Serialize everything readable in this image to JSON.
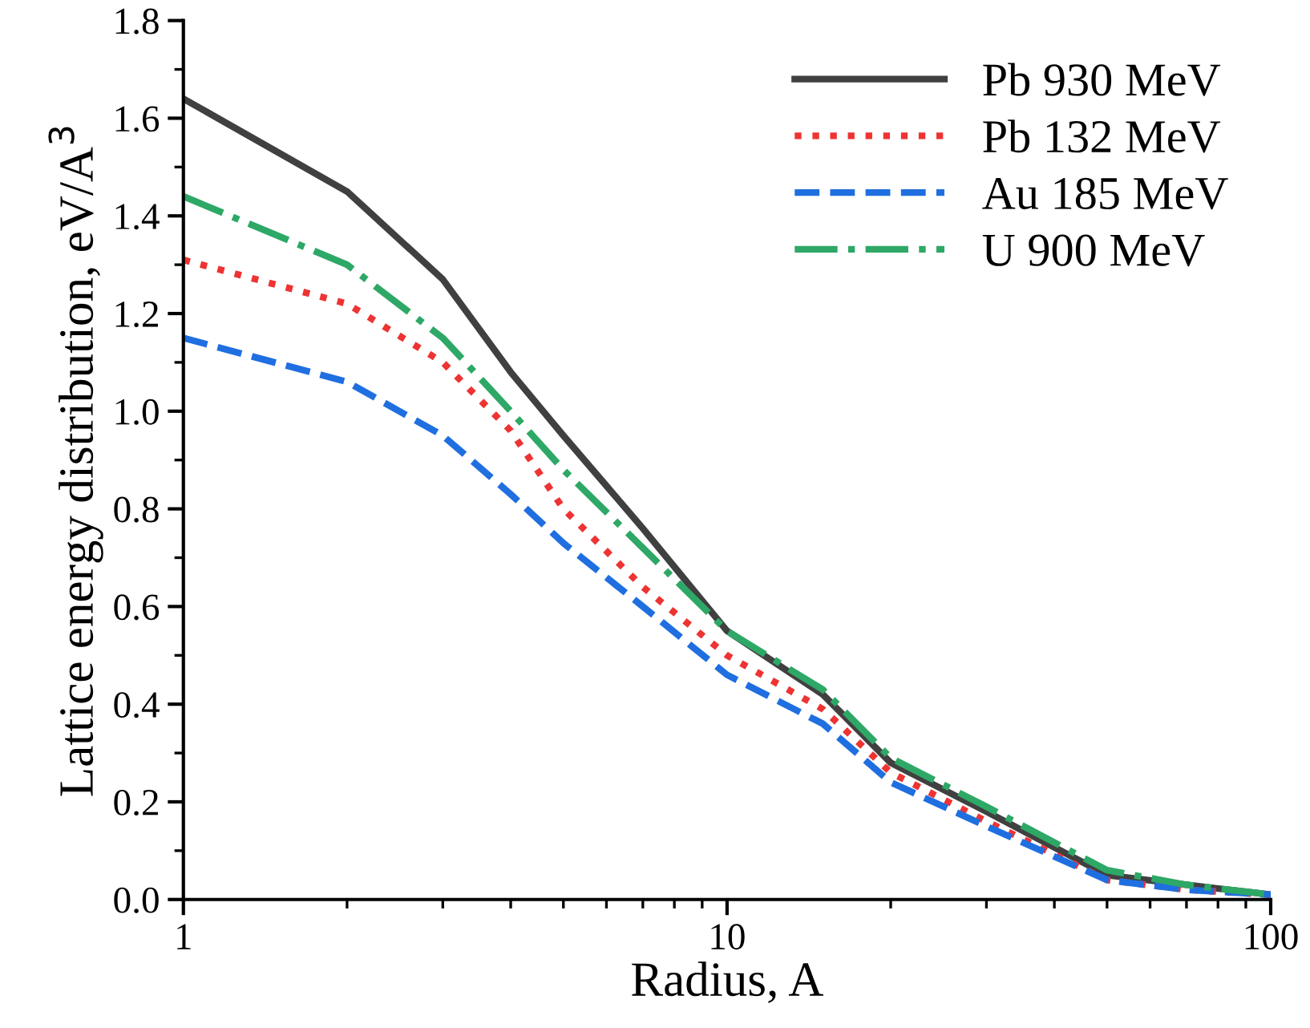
{
  "chart_data": {
    "type": "line",
    "xlabel": "Radius, A",
    "ylabel": "Lattice energy distribution, eV/A$^{3}$",
    "x": [
      1,
      2,
      3,
      4,
      5,
      7,
      10,
      15,
      20,
      30,
      50,
      70,
      100
    ],
    "series": [
      {
        "name": "Pb 930 MeV",
        "color": "#404040",
        "line_style": "solid",
        "values": [
          1.64,
          1.45,
          1.27,
          1.08,
          0.95,
          0.76,
          0.55,
          0.42,
          0.28,
          0.18,
          0.05,
          0.03,
          0.01
        ]
      },
      {
        "name": "Pb 132 MeV",
        "color": "#ee3333",
        "line_style": "dotted",
        "values": [
          1.31,
          1.22,
          1.1,
          0.96,
          0.8,
          0.64,
          0.5,
          0.39,
          0.26,
          0.16,
          0.04,
          0.02,
          0.01
        ]
      },
      {
        "name": "Au 185 MeV",
        "color": "#1f6fe0",
        "line_style": "dashed",
        "values": [
          1.15,
          1.06,
          0.95,
          0.83,
          0.73,
          0.6,
          0.46,
          0.36,
          0.24,
          0.15,
          0.04,
          0.02,
          0.01
        ]
      },
      {
        "name": "U 900 MeV",
        "color": "#2ea866",
        "line_style": "dashdot",
        "values": [
          1.44,
          1.3,
          1.15,
          1.0,
          0.88,
          0.72,
          0.55,
          0.43,
          0.29,
          0.19,
          0.06,
          0.03,
          0.01
        ]
      }
    ],
    "log": "x",
    "xlim": [
      1,
      100
    ],
    "xticks": [
      1,
      10,
      100
    ],
    "ylim": [
      0,
      1.8
    ],
    "yticks": [
      {
        "value": 0,
        "label": "0.0"
      },
      0.2,
      0.4,
      0.6,
      0.8,
      {
        "value": 1,
        "label": "1.0"
      },
      1.2,
      1.4,
      1.6,
      1.8
    ],
    "grid": false,
    "legend": "top right"
  }
}
